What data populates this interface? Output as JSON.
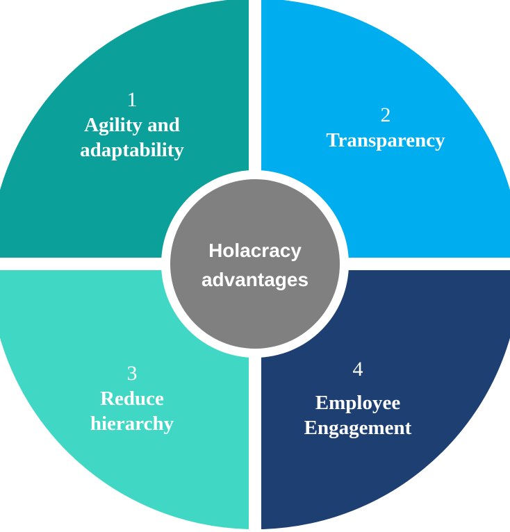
{
  "center": {
    "text": "Holacracy\nadvantages",
    "color": "#808080"
  },
  "segments": [
    {
      "number": "1",
      "label": "Agility and\nadaptability",
      "color": "#0BA09A"
    },
    {
      "number": "2",
      "label": "Transparency",
      "color": "#00AEEF"
    },
    {
      "number": "3",
      "label": "Reduce\nhierarchy",
      "color": "#40D8C4"
    },
    {
      "number": "4",
      "label": "Employee\nEngagement",
      "color": "#1E3F72"
    }
  ]
}
